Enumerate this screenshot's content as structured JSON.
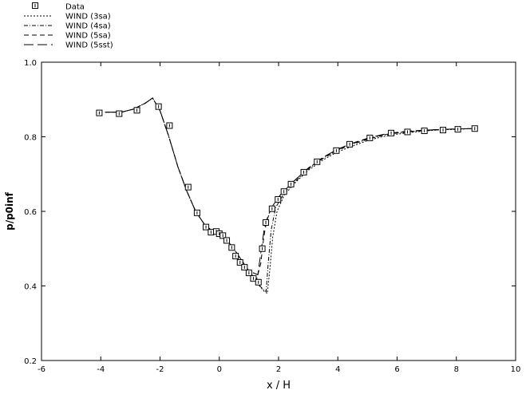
{
  "chart_data": {
    "type": "line",
    "title": "",
    "xlabel": "x / H",
    "ylabel": "p/p0inf",
    "xlim": [
      -6,
      10
    ],
    "ylim": [
      0.2,
      1.0
    ],
    "xticks": [
      -6,
      -4,
      -2,
      0,
      2,
      4,
      6,
      8,
      10
    ],
    "yticks": [
      0.2,
      0.4,
      0.6,
      0.8,
      1.0
    ],
    "ytick_labels": [
      "0.2",
      "0.4",
      "0.6",
      "0.8",
      "1.0"
    ],
    "grid": false,
    "legend_position": "top-left",
    "series": [
      {
        "name": "Data",
        "style": "markers",
        "marker": "square",
        "color": "#000000",
        "points": [
          [
            -4.05,
            0.864
          ],
          [
            -3.38,
            0.862
          ],
          [
            -2.78,
            0.871
          ],
          [
            -2.05,
            0.881
          ],
          [
            -1.68,
            0.83
          ],
          [
            -1.05,
            0.665
          ],
          [
            -0.75,
            0.596
          ],
          [
            -0.45,
            0.558
          ],
          [
            -0.28,
            0.544
          ],
          [
            -0.1,
            0.546
          ],
          [
            0.0,
            0.54
          ],
          [
            0.12,
            0.535
          ],
          [
            0.25,
            0.522
          ],
          [
            0.42,
            0.503
          ],
          [
            0.55,
            0.48
          ],
          [
            0.7,
            0.463
          ],
          [
            0.85,
            0.45
          ],
          [
            1.0,
            0.435
          ],
          [
            1.15,
            0.42
          ],
          [
            1.32,
            0.41
          ],
          [
            1.45,
            0.5
          ],
          [
            1.57,
            0.57
          ],
          [
            1.78,
            0.607
          ],
          [
            1.98,
            0.632
          ],
          [
            2.18,
            0.653
          ],
          [
            2.42,
            0.673
          ],
          [
            2.85,
            0.705
          ],
          [
            3.3,
            0.733
          ],
          [
            3.95,
            0.763
          ],
          [
            4.4,
            0.78
          ],
          [
            5.08,
            0.797
          ],
          [
            5.8,
            0.81
          ],
          [
            6.35,
            0.813
          ],
          [
            6.92,
            0.816
          ],
          [
            7.55,
            0.818
          ],
          [
            8.05,
            0.82
          ],
          [
            8.62,
            0.822
          ]
        ]
      },
      {
        "name": "WIND (3sa)",
        "style": "line",
        "dash": "2,2",
        "color": "#000000",
        "points": [
          [
            -3.85,
            0.866
          ],
          [
            -3.3,
            0.866
          ],
          [
            -2.9,
            0.874
          ],
          [
            -2.5,
            0.89
          ],
          [
            -2.25,
            0.904
          ],
          [
            -2.0,
            0.87
          ],
          [
            -1.7,
            0.8
          ],
          [
            -1.4,
            0.72
          ],
          [
            -1.1,
            0.655
          ],
          [
            -0.8,
            0.6
          ],
          [
            -0.5,
            0.565
          ],
          [
            -0.2,
            0.545
          ],
          [
            0.1,
            0.53
          ],
          [
            0.4,
            0.51
          ],
          [
            0.7,
            0.475
          ],
          [
            1.0,
            0.44
          ],
          [
            1.3,
            0.405
          ],
          [
            1.52,
            0.385
          ],
          [
            1.62,
            0.38
          ],
          [
            1.7,
            0.44
          ],
          [
            1.8,
            0.53
          ],
          [
            1.95,
            0.6
          ],
          [
            2.2,
            0.645
          ],
          [
            2.6,
            0.68
          ],
          [
            3.0,
            0.71
          ],
          [
            3.5,
            0.738
          ],
          [
            4.0,
            0.76
          ],
          [
            4.5,
            0.775
          ],
          [
            5.0,
            0.79
          ],
          [
            5.5,
            0.8
          ],
          [
            6.0,
            0.807
          ],
          [
            6.5,
            0.812
          ],
          [
            7.0,
            0.816
          ],
          [
            7.5,
            0.819
          ],
          [
            8.0,
            0.82
          ],
          [
            8.6,
            0.822
          ]
        ]
      },
      {
        "name": "WIND (4sa)",
        "style": "line",
        "dash": "5,2,1,2",
        "color": "#000000",
        "points": [
          [
            -3.85,
            0.866
          ],
          [
            -3.3,
            0.866
          ],
          [
            -2.9,
            0.874
          ],
          [
            -2.5,
            0.89
          ],
          [
            -2.25,
            0.904
          ],
          [
            -2.0,
            0.87
          ],
          [
            -1.7,
            0.8
          ],
          [
            -1.4,
            0.72
          ],
          [
            -1.1,
            0.655
          ],
          [
            -0.8,
            0.6
          ],
          [
            -0.5,
            0.565
          ],
          [
            -0.2,
            0.545
          ],
          [
            0.1,
            0.53
          ],
          [
            0.4,
            0.51
          ],
          [
            0.7,
            0.475
          ],
          [
            1.0,
            0.44
          ],
          [
            1.3,
            0.405
          ],
          [
            1.5,
            0.39
          ],
          [
            1.58,
            0.385
          ],
          [
            1.65,
            0.46
          ],
          [
            1.75,
            0.55
          ],
          [
            1.9,
            0.61
          ],
          [
            2.2,
            0.65
          ],
          [
            2.6,
            0.683
          ],
          [
            3.0,
            0.713
          ],
          [
            3.5,
            0.742
          ],
          [
            4.0,
            0.764
          ],
          [
            4.5,
            0.78
          ],
          [
            5.0,
            0.793
          ],
          [
            5.5,
            0.803
          ],
          [
            6.0,
            0.81
          ],
          [
            6.5,
            0.814
          ],
          [
            7.0,
            0.817
          ],
          [
            7.5,
            0.819
          ],
          [
            8.0,
            0.821
          ],
          [
            8.6,
            0.822
          ]
        ]
      },
      {
        "name": "WIND (5sa)",
        "style": "line",
        "dash": "6,4",
        "color": "#000000",
        "points": [
          [
            -3.85,
            0.866
          ],
          [
            -3.3,
            0.866
          ],
          [
            -2.9,
            0.874
          ],
          [
            -2.5,
            0.89
          ],
          [
            -2.25,
            0.904
          ],
          [
            -2.0,
            0.87
          ],
          [
            -1.7,
            0.8
          ],
          [
            -1.4,
            0.72
          ],
          [
            -1.1,
            0.655
          ],
          [
            -0.8,
            0.6
          ],
          [
            -0.5,
            0.565
          ],
          [
            -0.2,
            0.545
          ],
          [
            0.1,
            0.53
          ],
          [
            0.4,
            0.51
          ],
          [
            0.7,
            0.475
          ],
          [
            1.0,
            0.44
          ],
          [
            1.25,
            0.415
          ],
          [
            1.4,
            0.46
          ],
          [
            1.5,
            0.53
          ],
          [
            1.6,
            0.575
          ],
          [
            1.8,
            0.615
          ],
          [
            2.1,
            0.648
          ],
          [
            2.5,
            0.68
          ],
          [
            3.0,
            0.715
          ],
          [
            3.5,
            0.744
          ],
          [
            4.0,
            0.766
          ],
          [
            4.5,
            0.782
          ],
          [
            5.0,
            0.795
          ],
          [
            5.5,
            0.805
          ],
          [
            6.0,
            0.811
          ],
          [
            6.5,
            0.815
          ],
          [
            7.0,
            0.818
          ],
          [
            7.5,
            0.82
          ],
          [
            8.0,
            0.821
          ],
          [
            8.6,
            0.822
          ]
        ]
      },
      {
        "name": "WIND (5sst)",
        "style": "line",
        "dash": "12,5",
        "color": "#000000",
        "points": [
          [
            -3.85,
            0.866
          ],
          [
            -3.3,
            0.866
          ],
          [
            -2.9,
            0.874
          ],
          [
            -2.5,
            0.89
          ],
          [
            -2.25,
            0.904
          ],
          [
            -2.0,
            0.87
          ],
          [
            -1.7,
            0.8
          ],
          [
            -1.4,
            0.72
          ],
          [
            -1.1,
            0.655
          ],
          [
            -0.8,
            0.6
          ],
          [
            -0.5,
            0.565
          ],
          [
            -0.2,
            0.545
          ],
          [
            0.1,
            0.53
          ],
          [
            0.4,
            0.51
          ],
          [
            0.7,
            0.475
          ],
          [
            1.0,
            0.44
          ],
          [
            1.3,
            0.43
          ],
          [
            1.42,
            0.5
          ],
          [
            1.52,
            0.555
          ],
          [
            1.65,
            0.59
          ],
          [
            1.85,
            0.622
          ],
          [
            2.1,
            0.648
          ],
          [
            2.5,
            0.68
          ],
          [
            3.0,
            0.716
          ],
          [
            3.5,
            0.745
          ],
          [
            4.0,
            0.767
          ],
          [
            4.5,
            0.783
          ],
          [
            5.0,
            0.796
          ],
          [
            5.5,
            0.806
          ],
          [
            6.0,
            0.812
          ],
          [
            6.5,
            0.816
          ],
          [
            7.0,
            0.818
          ],
          [
            7.5,
            0.82
          ],
          [
            8.0,
            0.821
          ],
          [
            8.6,
            0.822
          ]
        ]
      }
    ]
  }
}
